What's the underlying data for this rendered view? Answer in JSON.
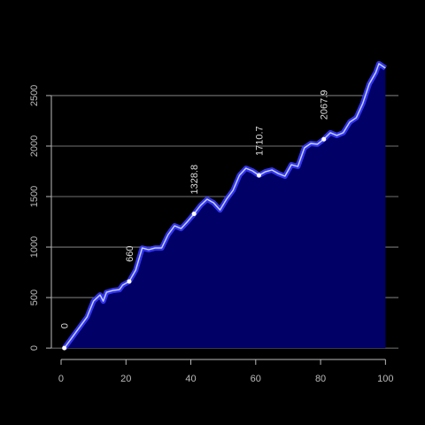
{
  "chart_data": {
    "type": "area",
    "x": [
      1,
      5,
      8,
      10,
      12,
      13,
      14,
      16,
      18,
      19,
      21,
      23,
      25,
      27,
      29,
      31,
      33,
      35,
      37,
      39,
      41,
      43,
      45,
      47,
      49,
      51,
      53,
      55,
      57,
      59,
      61,
      63,
      65,
      67,
      69,
      71,
      73,
      75,
      77,
      79,
      81,
      83,
      85,
      87,
      89,
      91,
      93,
      95,
      97,
      98,
      100
    ],
    "series": [
      {
        "color": "#3a3aff",
        "fill": "#000066",
        "values": [
          0,
          175,
          307,
          465,
          526,
          465,
          552,
          570,
          579,
          623,
          660,
          772,
          991,
          974,
          991,
          991,
          1123,
          1211,
          1184,
          1254,
          1328.8,
          1412,
          1474,
          1439,
          1368,
          1474,
          1561,
          1711,
          1781,
          1754,
          1710.7,
          1746,
          1763,
          1728,
          1702,
          1816,
          1798,
          1982,
          2026,
          2018,
          2067.9,
          2132,
          2105,
          2132,
          2237,
          2281,
          2421,
          2614,
          2728,
          2816,
          2772
        ]
      }
    ],
    "annotations": [
      {
        "x": 1,
        "y": 0
      },
      {
        "x": 21,
        "y": 660
      },
      {
        "x": 41,
        "y": 1328.8
      },
      {
        "x": 61,
        "y": 1710.7
      },
      {
        "x": 81,
        "y": 2067.9
      }
    ],
    "xlim": [
      -3,
      104
    ],
    "ylim": [
      -113,
      2929
    ],
    "xticks": [
      0,
      20,
      40,
      60,
      80,
      100
    ],
    "yticks": [
      0,
      500,
      1000,
      1500,
      2000,
      2500
    ],
    "grid": true
  }
}
